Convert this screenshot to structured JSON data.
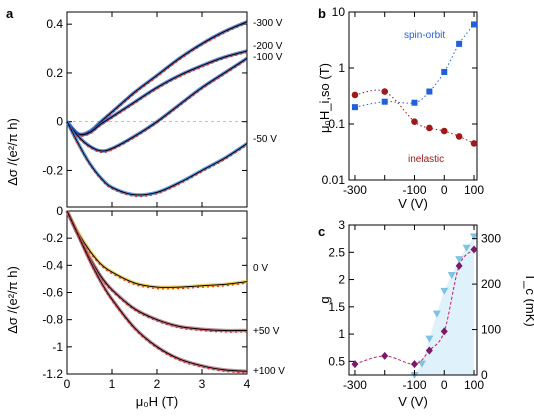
{
  "panels": {
    "a": "a",
    "b": "b",
    "c": "c"
  },
  "chart_data": [
    {
      "id": "a_top",
      "type": "line",
      "ylabel": "Δσ /(e²/π h)",
      "xlim": [
        0,
        4
      ],
      "ylim": [
        -0.35,
        0.45
      ],
      "yticks": [
        -0.2,
        0,
        0.2,
        0.4
      ],
      "ytick_labels": [
        "-0.2",
        "0",
        "0.2",
        "0.4"
      ],
      "xticks": [
        0,
        1,
        2,
        3,
        4
      ],
      "xtick_labels": [
        "",
        "",
        "",
        "",
        ""
      ],
      "colors": {
        "fit": "#000000",
        "data": "#e0302a",
        "band": "#2a6fdc"
      },
      "series": [
        {
          "name": "-300 V",
          "x": [
            0,
            0.25,
            0.5,
            0.75,
            1,
            1.5,
            2,
            2.5,
            3,
            3.5,
            4
          ],
          "values": [
            0,
            -0.05,
            -0.04,
            0.0,
            0.04,
            0.12,
            0.19,
            0.26,
            0.32,
            0.37,
            0.41
          ]
        },
        {
          "name": "-200 V",
          "x": [
            0,
            0.25,
            0.5,
            0.75,
            1,
            1.5,
            2,
            2.5,
            3,
            3.5,
            4
          ],
          "values": [
            0,
            -0.05,
            -0.045,
            -0.01,
            0.02,
            0.08,
            0.14,
            0.19,
            0.23,
            0.265,
            0.29
          ]
        },
        {
          "name": "-100 V",
          "x": [
            0,
            0.25,
            0.5,
            0.75,
            1,
            1.5,
            2,
            2.5,
            3,
            3.5,
            4
          ],
          "values": [
            0,
            -0.06,
            -0.1,
            -0.12,
            -0.11,
            -0.06,
            0.0,
            0.07,
            0.14,
            0.2,
            0.26
          ]
        },
        {
          "name": "-50 V",
          "x": [
            0,
            0.25,
            0.5,
            0.75,
            1,
            1.5,
            2,
            2.5,
            3,
            3.5,
            4
          ],
          "values": [
            0,
            -0.09,
            -0.17,
            -0.23,
            -0.27,
            -0.3,
            -0.29,
            -0.25,
            -0.2,
            -0.15,
            -0.09
          ]
        }
      ]
    },
    {
      "id": "a_bottom",
      "type": "line",
      "ylabel": "Δσ /(e²/π h)",
      "xlabel": "μ₀H (T)",
      "xlim": [
        0,
        4
      ],
      "ylim": [
        -1.2,
        0
      ],
      "yticks": [
        -1.2,
        -1,
        -0.8,
        -0.6,
        -0.4,
        -0.2,
        0
      ],
      "ytick_labels": [
        "-1.2",
        "-1",
        "-0.8",
        "-0.6",
        "-0.4",
        "-0.2",
        "0"
      ],
      "xticks": [
        0,
        1,
        2,
        3,
        4
      ],
      "xtick_labels": [
        "0",
        "1",
        "2",
        "3",
        "4"
      ],
      "colors": {
        "fit": "#000000",
        "data": "#e0302a",
        "band0": "#e8c020",
        "band": "#b06070"
      },
      "series": [
        {
          "name": "0 V",
          "x": [
            0,
            0.25,
            0.5,
            0.75,
            1,
            1.5,
            2,
            2.5,
            3,
            3.5,
            4
          ],
          "values": [
            0,
            -0.16,
            -0.29,
            -0.39,
            -0.45,
            -0.53,
            -0.56,
            -0.56,
            -0.55,
            -0.54,
            -0.52
          ]
        },
        {
          "name": "+50 V",
          "x": [
            0,
            0.25,
            0.5,
            0.75,
            1,
            1.5,
            2,
            2.5,
            3,
            3.5,
            4
          ],
          "values": [
            0,
            -0.18,
            -0.34,
            -0.48,
            -0.58,
            -0.72,
            -0.8,
            -0.85,
            -0.87,
            -0.88,
            -0.88
          ]
        },
        {
          "name": "+100 V",
          "x": [
            0,
            0.25,
            0.5,
            0.75,
            1,
            1.5,
            2,
            2.5,
            3,
            3.5,
            4
          ],
          "values": [
            0,
            -0.18,
            -0.36,
            -0.52,
            -0.65,
            -0.86,
            -1.0,
            -1.09,
            -1.14,
            -1.17,
            -1.18
          ]
        }
      ]
    },
    {
      "id": "b",
      "type": "scatter",
      "scale": "log-y",
      "ylabel": "μ₀H_i,so (T)",
      "xlabel": "V (V)",
      "xlim": [
        -320,
        110
      ],
      "ylim": [
        0.01,
        10
      ],
      "yticks": [
        0.01,
        0.1,
        1,
        10
      ],
      "ytick_labels": [
        "0.01",
        "0.1",
        "1",
        "10"
      ],
      "xticks": [
        -300,
        -200,
        -100,
        0,
        100
      ],
      "xtick_labels": [
        "-300",
        "",
        "-100",
        "0",
        "100"
      ],
      "series": [
        {
          "name": "spin-orbit",
          "color": "#2060d8",
          "marker": "square",
          "x": [
            -300,
            -200,
            -100,
            -50,
            0,
            50,
            100
          ],
          "values": [
            0.2,
            0.25,
            0.24,
            0.38,
            0.85,
            2.7,
            6.0
          ]
        },
        {
          "name": "inelastic",
          "color": "#a01818",
          "marker": "circle",
          "x": [
            -300,
            -200,
            -100,
            -50,
            0,
            50,
            100
          ],
          "values": [
            0.33,
            0.38,
            0.11,
            0.085,
            0.075,
            0.06,
            0.045
          ]
        }
      ]
    },
    {
      "id": "c",
      "type": "scatter",
      "ylabel": "g",
      "y2label": "T_c (mK)",
      "xlabel": "V (V)",
      "xlim": [
        -320,
        110
      ],
      "ylim": [
        0.25,
        3
      ],
      "yticks": [
        0.5,
        1,
        1.5,
        2,
        2.5,
        3
      ],
      "ytick_labels": [
        "0.5",
        "1",
        "1.5",
        "2",
        "2.5",
        "3"
      ],
      "y2lim": [
        0,
        330
      ],
      "y2ticks": [
        0,
        100,
        200,
        300
      ],
      "y2tick_labels": [
        "0",
        "100",
        "200",
        "300"
      ],
      "xticks": [
        -300,
        -200,
        -100,
        0,
        100
      ],
      "xtick_labels": [
        "-300",
        "",
        "-100",
        "0",
        "100"
      ],
      "series": [
        {
          "name": "g",
          "color": "#7a1a6a",
          "marker": "diamond",
          "x": [
            -300,
            -200,
            -100,
            -50,
            0,
            50,
            100
          ],
          "values": [
            0.45,
            0.6,
            0.45,
            0.7,
            1.05,
            2.25,
            2.55
          ]
        },
        {
          "name": "T_c",
          "color": "#6ab8e0",
          "marker": "triangle-down",
          "x": [
            -100,
            -75,
            -50,
            -25,
            0,
            25,
            50,
            75,
            100
          ],
          "values": [
            0,
            25,
            80,
            135,
            185,
            220,
            255,
            280,
            305
          ]
        }
      ]
    }
  ]
}
